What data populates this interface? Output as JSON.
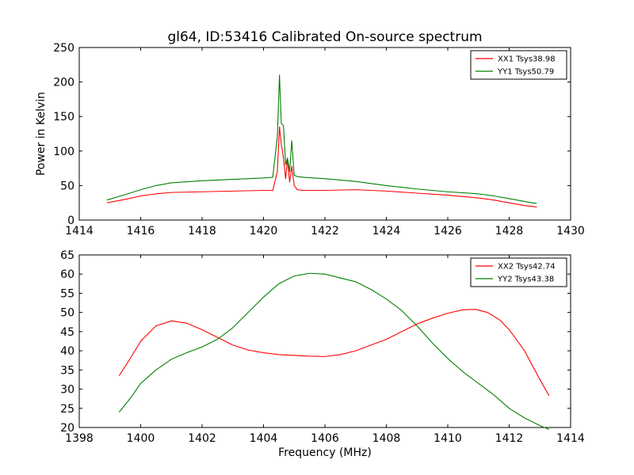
{
  "chart_data": [
    {
      "type": "line",
      "title": "gl64, ID:53416 Calibrated On-source spectrum",
      "xlabel": "",
      "ylabel": "Power in Kelvin",
      "xlim": [
        1414,
        1430
      ],
      "ylim": [
        0,
        250
      ],
      "xticks": [
        "1414",
        "1416",
        "1418",
        "1420",
        "1422",
        "1424",
        "1426",
        "1428",
        "1430"
      ],
      "yticks": [
        "0",
        "50",
        "100",
        "150",
        "200",
        "250"
      ],
      "grid": false,
      "legend_position": "top-right",
      "series": [
        {
          "name": "XX1 Tsys38.98",
          "color": "#ff0000",
          "x": [
            1414.9,
            1415.5,
            1416.0,
            1416.5,
            1417.0,
            1418.0,
            1419.0,
            1420.0,
            1420.3,
            1420.45,
            1420.52,
            1420.58,
            1420.65,
            1420.72,
            1420.78,
            1420.85,
            1420.92,
            1421.0,
            1421.1,
            1421.3,
            1422.0,
            1423.0,
            1424.0,
            1425.0,
            1426.0,
            1427.0,
            1427.5,
            1428.0,
            1428.5,
            1428.9
          ],
          "y": [
            25,
            30,
            35,
            38,
            40,
            41,
            42,
            43,
            43,
            70,
            135,
            110,
            90,
            60,
            88,
            55,
            78,
            50,
            44,
            43,
            43,
            44,
            42,
            39,
            36,
            32,
            29,
            25,
            21,
            19
          ]
        },
        {
          "name": "YY1 Tsys50.79",
          "color": "#008000",
          "x": [
            1414.9,
            1415.5,
            1416.0,
            1416.5,
            1417.0,
            1418.0,
            1419.0,
            1420.0,
            1420.3,
            1420.45,
            1420.52,
            1420.58,
            1420.65,
            1420.72,
            1420.78,
            1420.85,
            1420.92,
            1421.0,
            1421.1,
            1421.3,
            1422.0,
            1423.0,
            1424.0,
            1425.0,
            1426.0,
            1427.0,
            1427.5,
            1428.0,
            1428.5,
            1428.9
          ],
          "y": [
            29,
            37,
            44,
            50,
            54,
            57,
            59,
            61,
            62,
            120,
            210,
            140,
            137,
            80,
            90,
            70,
            115,
            65,
            63,
            62,
            60,
            56,
            50,
            45,
            41,
            38,
            35,
            31,
            27,
            24
          ]
        }
      ]
    },
    {
      "type": "line",
      "title": "",
      "xlabel": "Frequency (MHz)",
      "ylabel": "",
      "xlim": [
        1398,
        1414
      ],
      "ylim": [
        20,
        65
      ],
      "xticks": [
        "1398",
        "1400",
        "1402",
        "1404",
        "1406",
        "1408",
        "1410",
        "1412",
        "1414"
      ],
      "yticks": [
        "20",
        "25",
        "30",
        "35",
        "40",
        "45",
        "50",
        "55",
        "60",
        "65"
      ],
      "grid": false,
      "legend_position": "top-right",
      "series": [
        {
          "name": "XX2 Tsys42.74",
          "color": "#ff0000",
          "x": [
            1399.3,
            1399.7,
            1400.0,
            1400.5,
            1401.0,
            1401.5,
            1402.0,
            1402.5,
            1403.0,
            1403.5,
            1404.0,
            1404.5,
            1405.0,
            1405.5,
            1406.0,
            1406.5,
            1407.0,
            1407.5,
            1408.0,
            1408.5,
            1409.0,
            1409.5,
            1410.0,
            1410.5,
            1410.9,
            1411.3,
            1411.7,
            1412.0,
            1412.5,
            1413.0,
            1413.3
          ],
          "y": [
            33.5,
            38.5,
            42.5,
            46.5,
            47.8,
            47.2,
            45.5,
            43.5,
            41.5,
            40.2,
            39.5,
            39.0,
            38.8,
            38.6,
            38.5,
            39.0,
            40.0,
            41.5,
            43.0,
            45.0,
            47.0,
            48.5,
            49.8,
            50.7,
            50.8,
            50.0,
            48.0,
            45.5,
            40.0,
            32.5,
            28.3
          ]
        },
        {
          "name": "YY2 Tsys43.38",
          "color": "#008000",
          "x": [
            1399.3,
            1399.7,
            1400.0,
            1400.5,
            1401.0,
            1401.5,
            1402.0,
            1402.5,
            1403.0,
            1403.5,
            1404.0,
            1404.5,
            1405.0,
            1405.5,
            1406.0,
            1406.5,
            1407.0,
            1407.5,
            1408.0,
            1408.5,
            1409.0,
            1409.5,
            1410.0,
            1410.5,
            1411.0,
            1411.5,
            1412.0,
            1412.5,
            1413.0,
            1413.3
          ],
          "y": [
            24.0,
            28.0,
            31.5,
            35.0,
            37.8,
            39.5,
            41.0,
            43.0,
            46.0,
            50.0,
            54.0,
            57.5,
            59.5,
            60.2,
            60.0,
            59.0,
            58.0,
            56.0,
            53.5,
            50.5,
            46.5,
            42.0,
            38.0,
            34.5,
            31.5,
            28.5,
            25.0,
            22.5,
            20.5,
            19.5
          ]
        }
      ]
    }
  ]
}
